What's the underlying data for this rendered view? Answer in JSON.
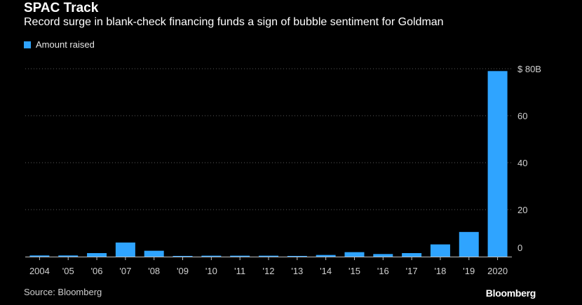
{
  "header": {
    "title": "SPAC Track",
    "subtitle": "Record surge in blank-check financing funds a sign of bubble sentiment for Goldman"
  },
  "legend": {
    "label": "Amount raised",
    "color": "#2fa4ff"
  },
  "footer": {
    "source": "Source: Bloomberg",
    "brand": "Bloomberg"
  },
  "chart_data": {
    "type": "bar",
    "categories": [
      "2004",
      "'05",
      "'06",
      "'07",
      "'08",
      "'09",
      "'10",
      "'11",
      "'12",
      "'13",
      "'14",
      "'15",
      "'16",
      "'17",
      "'18",
      "'19",
      "2020"
    ],
    "series": [
      {
        "name": "Amount raised",
        "values": [
          0.5,
          0.5,
          1.5,
          6,
          2.5,
          0.3,
          0.4,
          0.4,
          0.4,
          0.3,
          0.7,
          1.9,
          1.1,
          1.5,
          5.2,
          10.5,
          79
        ]
      }
    ],
    "ylim": [
      0,
      80
    ],
    "yticks": [
      0,
      20,
      40,
      60,
      80
    ],
    "ytick_labels": [
      "0",
      "20",
      "40",
      "60",
      "$ 80B"
    ],
    "y_axis_side": "right",
    "grid": "horizontal-dotted",
    "bar_color": "#2fa4ff"
  }
}
